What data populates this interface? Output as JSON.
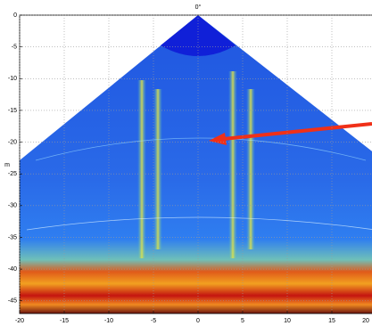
{
  "chart_data": {
    "type": "image",
    "title": "0°",
    "ylabel": "m",
    "xlim": [
      -20,
      20
    ],
    "ylim": [
      -47,
      0
    ],
    "xticks": [
      -20,
      -15,
      -10,
      -5,
      0,
      5,
      10,
      15,
      20
    ],
    "yticks": [
      0,
      -5,
      -10,
      -15,
      -20,
      -25,
      -30,
      -35,
      -40,
      -45
    ],
    "grid": true
  }
}
